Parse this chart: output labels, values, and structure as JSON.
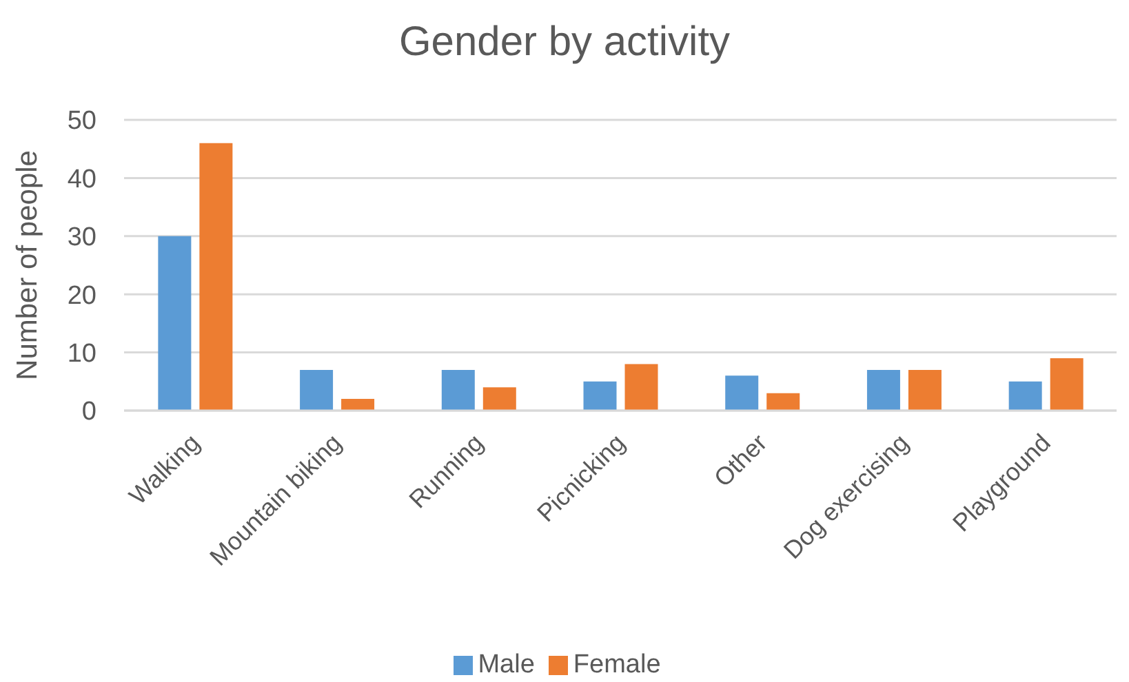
{
  "chart_data": {
    "type": "bar",
    "title": "Gender by activity",
    "ylabel": "Number of people",
    "categories": [
      "Walking",
      "Mountain biking",
      "Running",
      "Picnicking",
      "Other",
      "Dog exercising",
      "Playground"
    ],
    "series": [
      {
        "name": "Male",
        "color": "#5b9bd5",
        "values": [
          30,
          7,
          7,
          5,
          6,
          7,
          5
        ]
      },
      {
        "name": "Female",
        "color": "#ed7d31",
        "values": [
          46,
          2,
          4,
          8,
          3,
          7,
          9
        ]
      }
    ],
    "ylim": [
      0,
      50
    ],
    "yticks": [
      0,
      10,
      20,
      30,
      40,
      50
    ],
    "grid": "y",
    "legend": "bottom"
  }
}
